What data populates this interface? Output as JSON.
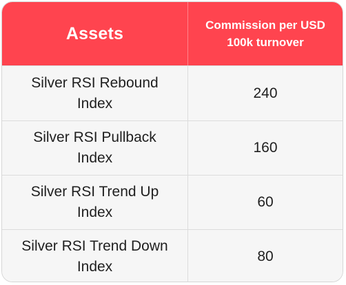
{
  "table": {
    "header": {
      "assets_label": "Assets",
      "commission_label": "Commission per USD 100k turnover"
    },
    "rows": [
      {
        "asset": "Silver RSI Rebound Index",
        "commission": "240"
      },
      {
        "asset": "Silver RSI Pullback Index",
        "commission": "160"
      },
      {
        "asset": "Silver RSI Trend Up Index",
        "commission": "60"
      },
      {
        "asset": "Silver RSI Trend Down Index",
        "commission": "80"
      }
    ]
  },
  "colors": {
    "header_bg": "#ff444f",
    "header_text": "#ffffff",
    "body_bg": "#f6f6f6",
    "body_text": "#1f1f1f"
  }
}
